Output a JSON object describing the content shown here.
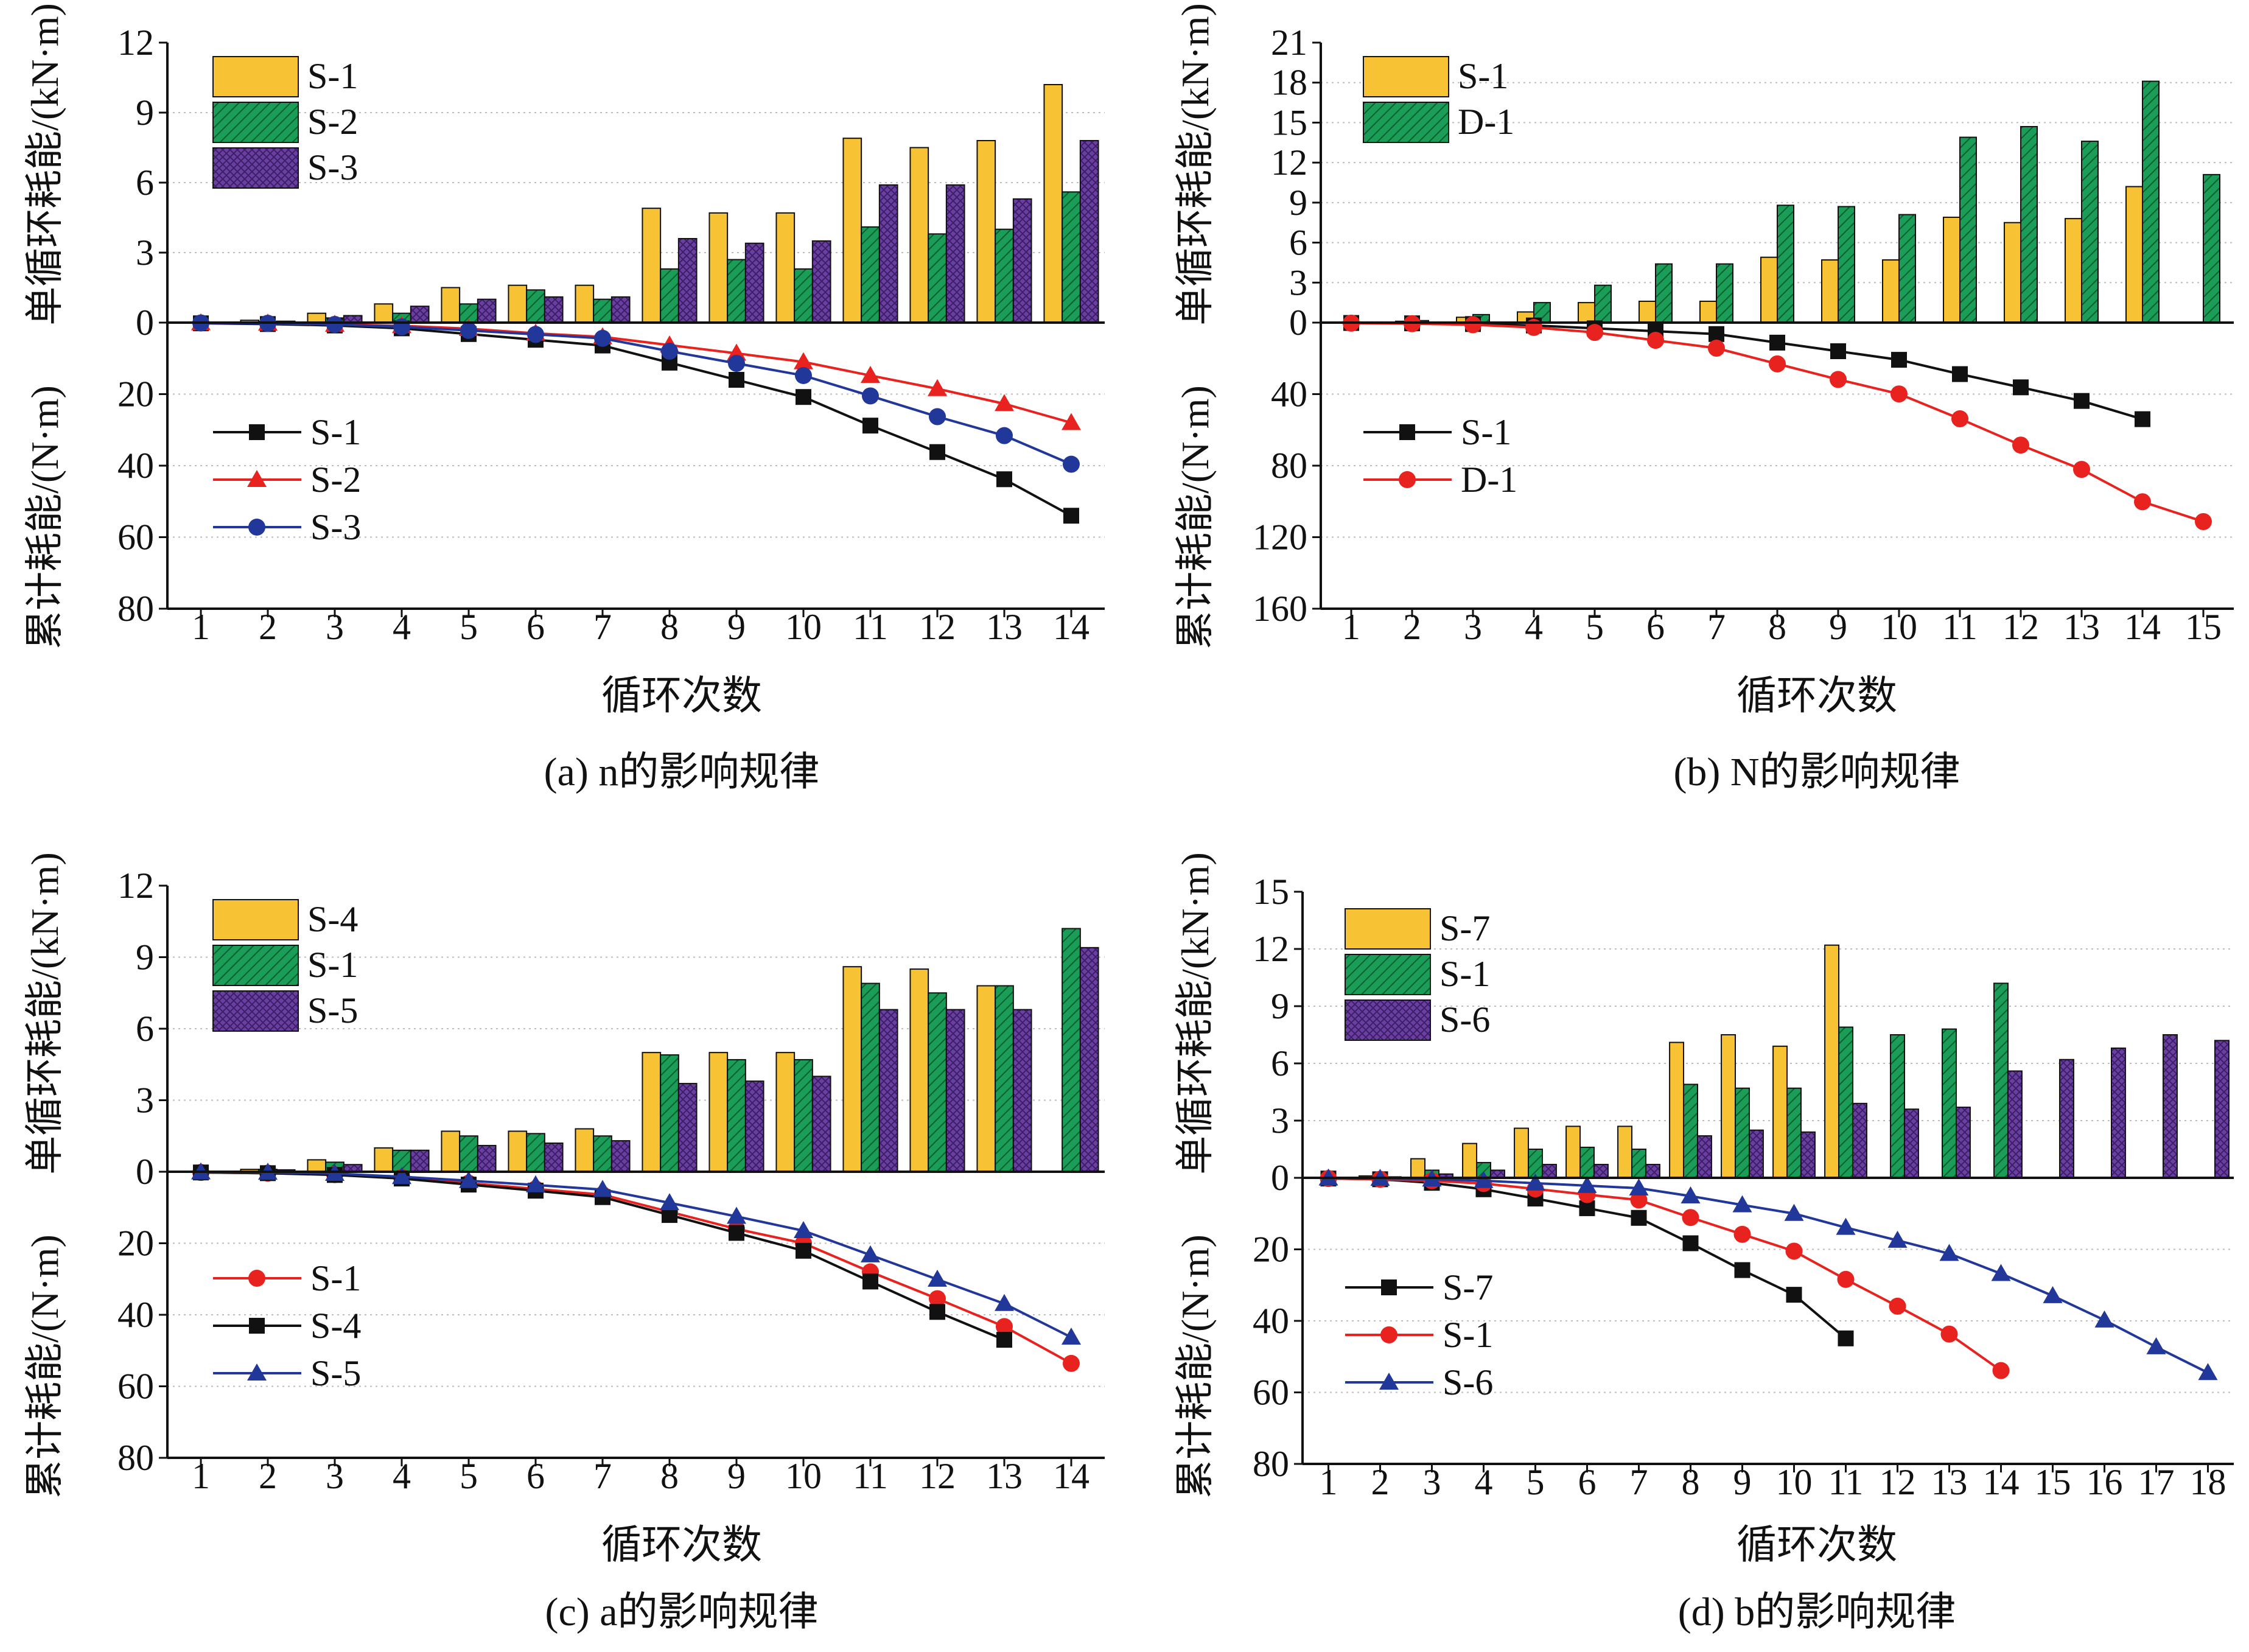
{
  "colors": {
    "yellow": "#f7c233",
    "green": "#1a9d57",
    "purple": "#6a3fa1",
    "black": "#111111",
    "red": "#e8231f",
    "blue": "#22379a",
    "grid": "#bdbdbd"
  },
  "chart_data": [
    {
      "type": "bar+line",
      "caption": "(a) n的影响规律",
      "xlabel": "循环次数",
      "ylabel_top": "单循环耗能/(kN·m)",
      "ylabel_bottom": "累计耗能/(N·m)",
      "categories": [
        "1",
        "2",
        "3",
        "4",
        "5",
        "6",
        "7",
        "8",
        "9",
        "10",
        "11",
        "12",
        "13",
        "14"
      ],
      "top_ylim": [
        0,
        12
      ],
      "top_ticks": [
        "0",
        "3",
        "6",
        "9",
        "12"
      ],
      "bottom_ylim": [
        0,
        80
      ],
      "bottom_ticks": [
        "0",
        "20",
        "40",
        "60",
        "80"
      ],
      "bar_series": [
        {
          "name": "S-1",
          "color": "yellow",
          "values": [
            0.02,
            0.1,
            0.4,
            0.8,
            1.5,
            1.6,
            1.6,
            4.9,
            4.7,
            4.7,
            7.9,
            7.5,
            7.8,
            10.2
          ]
        },
        {
          "name": "S-2",
          "color": "green",
          "values": [
            0.01,
            0.05,
            0.2,
            0.4,
            0.8,
            1.4,
            1.0,
            2.3,
            2.7,
            2.3,
            4.1,
            3.8,
            4.0,
            5.6
          ]
        },
        {
          "name": "S-3",
          "color": "purple",
          "values": [
            0.01,
            0.06,
            0.3,
            0.7,
            1.0,
            1.1,
            1.1,
            3.6,
            3.4,
            3.5,
            5.9,
            5.9,
            5.3,
            7.8
          ]
        }
      ],
      "line_series": [
        {
          "name": "S-1",
          "color": "black",
          "marker": "square",
          "values": [
            0.2,
            0.4,
            0.8,
            1.6,
            3.2,
            4.8,
            6.4,
            11.2,
            16.0,
            20.8,
            28.8,
            36.2,
            43.8,
            54.0
          ]
        },
        {
          "name": "S-2",
          "color": "red",
          "marker": "triangle",
          "values": [
            0.1,
            0.2,
            0.5,
            0.9,
            1.7,
            3.0,
            4.0,
            6.3,
            8.6,
            11.0,
            14.8,
            18.5,
            22.7,
            28.0
          ]
        },
        {
          "name": "S-3",
          "color": "blue",
          "marker": "circle",
          "values": [
            0.1,
            0.2,
            0.5,
            1.2,
            2.2,
            3.3,
            4.4,
            8.0,
            11.4,
            14.8,
            20.5,
            26.3,
            31.6,
            39.6
          ]
        }
      ]
    },
    {
      "type": "bar+line",
      "caption": "(b) N的影响规律",
      "xlabel": "循环次数",
      "ylabel_top": "单循环耗能/(kN·m)",
      "ylabel_bottom": "累计耗能/(N·m)",
      "categories": [
        "1",
        "2",
        "3",
        "4",
        "5",
        "6",
        "7",
        "8",
        "9",
        "10",
        "11",
        "12",
        "13",
        "14",
        "15"
      ],
      "top_ylim": [
        0,
        21
      ],
      "top_ticks": [
        "0",
        "3",
        "6",
        "9",
        "12",
        "15",
        "18",
        "21"
      ],
      "bottom_ylim": [
        0,
        160
      ],
      "bottom_ticks": [
        "0",
        "40",
        "80",
        "120",
        "160"
      ],
      "bar_series": [
        {
          "name": "S-1",
          "color": "yellow",
          "values": [
            0.02,
            0.1,
            0.4,
            0.8,
            1.5,
            1.6,
            1.6,
            4.9,
            4.7,
            4.7,
            7.9,
            7.5,
            7.8,
            10.2,
            null
          ]
        },
        {
          "name": "D-1",
          "color": "green",
          "values": [
            0.03,
            0.15,
            0.6,
            1.5,
            2.8,
            4.4,
            4.4,
            8.8,
            8.7,
            8.1,
            13.9,
            14.7,
            13.6,
            18.1,
            11.1
          ]
        }
      ],
      "line_series": [
        {
          "name": "S-1",
          "color": "black",
          "marker": "square",
          "values": [
            0.2,
            0.4,
            0.8,
            1.6,
            3.2,
            4.8,
            6.4,
            11.2,
            16.0,
            20.8,
            28.8,
            36.2,
            43.8,
            54.0,
            null
          ]
        },
        {
          "name": "D-1",
          "color": "red",
          "marker": "circle",
          "values": [
            0.3,
            0.6,
            1.2,
            2.7,
            5.5,
            9.9,
            14.3,
            23.1,
            31.8,
            39.9,
            53.8,
            68.5,
            82.1,
            100.2,
            111.3
          ]
        }
      ]
    },
    {
      "type": "bar+line",
      "caption": "(c) a的影响规律",
      "xlabel": "循环次数",
      "ylabel_top": "单循环耗能/(kN·m)",
      "ylabel_bottom": "累计耗能/(N·m)",
      "categories": [
        "1",
        "2",
        "3",
        "4",
        "5",
        "6",
        "7",
        "8",
        "9",
        "10",
        "11",
        "12",
        "13",
        "14"
      ],
      "top_ylim": [
        0,
        12
      ],
      "top_ticks": [
        "0",
        "3",
        "6",
        "9",
        "12"
      ],
      "bottom_ylim": [
        0,
        80
      ],
      "bottom_ticks": [
        "0",
        "20",
        "40",
        "60",
        "80"
      ],
      "bar_series": [
        {
          "name": "S-4",
          "color": "yellow",
          "values": [
            0.02,
            0.1,
            0.5,
            1.0,
            1.7,
            1.7,
            1.8,
            5.0,
            5.0,
            5.0,
            8.6,
            8.5,
            7.8,
            null
          ]
        },
        {
          "name": "S-1",
          "color": "green",
          "values": [
            0.02,
            0.1,
            0.4,
            0.9,
            1.5,
            1.6,
            1.5,
            4.9,
            4.7,
            4.7,
            7.9,
            7.5,
            7.8,
            10.2
          ]
        },
        {
          "name": "S-5",
          "color": "purple",
          "values": [
            0.01,
            0.08,
            0.3,
            0.9,
            1.1,
            1.2,
            1.3,
            3.7,
            3.8,
            4.0,
            6.8,
            6.8,
            6.8,
            9.4
          ]
        }
      ],
      "line_series": [
        {
          "name": "S-1",
          "color": "red",
          "marker": "circle",
          "values": [
            0.2,
            0.4,
            0.8,
            1.6,
            3.2,
            4.8,
            6.4,
            11.2,
            16.0,
            20.0,
            28.0,
            35.5,
            43.3,
            53.6
          ]
        },
        {
          "name": "S-4",
          "color": "black",
          "marker": "square",
          "values": [
            0.2,
            0.4,
            0.9,
            1.9,
            3.6,
            5.3,
            7.1,
            12.1,
            17.1,
            22.1,
            30.7,
            39.2,
            47.0,
            null
          ]
        },
        {
          "name": "S-5",
          "color": "blue",
          "marker": "triangle",
          "values": [
            0.1,
            0.2,
            0.5,
            1.4,
            2.5,
            3.7,
            5.0,
            8.7,
            12.5,
            16.5,
            23.3,
            30.1,
            36.9,
            46.3
          ]
        }
      ]
    },
    {
      "type": "bar+line",
      "caption": "(d) b的影响规律",
      "xlabel": "循环次数",
      "ylabel_top": "单循环耗能/(kN·m)",
      "ylabel_bottom": "累计耗能/(N·m)",
      "categories": [
        "1",
        "2",
        "3",
        "4",
        "5",
        "6",
        "7",
        "8",
        "9",
        "10",
        "11",
        "12",
        "13",
        "14",
        "15",
        "16",
        "17",
        "18"
      ],
      "top_ylim": [
        0,
        15
      ],
      "top_ticks": [
        "0",
        "3",
        "6",
        "9",
        "12",
        "15"
      ],
      "bottom_ylim": [
        0,
        80
      ],
      "bottom_ticks": [
        "0",
        "20",
        "40",
        "60",
        "80"
      ],
      "bar_series": [
        {
          "name": "S-7",
          "color": "yellow",
          "values": [
            0.02,
            0.1,
            1.0,
            1.8,
            2.6,
            2.7,
            2.7,
            7.1,
            7.5,
            6.9,
            12.2,
            null,
            null,
            null,
            null,
            null,
            null,
            null
          ]
        },
        {
          "name": "S-1",
          "color": "green",
          "values": [
            0.02,
            0.1,
            0.4,
            0.8,
            1.5,
            1.6,
            1.5,
            4.9,
            4.7,
            4.7,
            7.9,
            7.5,
            7.8,
            10.2,
            null,
            null,
            null,
            null
          ]
        },
        {
          "name": "S-6",
          "color": "purple",
          "values": [
            0.01,
            0.05,
            0.2,
            0.4,
            0.7,
            0.7,
            0.7,
            2.2,
            2.5,
            2.4,
            3.9,
            3.6,
            3.7,
            5.6,
            6.2,
            6.8,
            7.5,
            7.2
          ]
        }
      ],
      "line_series": [
        {
          "name": "S-7",
          "color": "black",
          "marker": "square",
          "values": [
            0.2,
            0.4,
            1.4,
            3.2,
            5.8,
            8.5,
            11.2,
            18.3,
            25.8,
            32.7,
            44.9,
            null,
            null,
            null,
            null,
            null,
            null,
            null
          ]
        },
        {
          "name": "S-1",
          "color": "red",
          "marker": "circle",
          "values": [
            0.2,
            0.4,
            0.8,
            1.6,
            3.1,
            4.7,
            6.2,
            11.1,
            15.8,
            20.5,
            28.4,
            35.9,
            43.7,
            53.9,
            null,
            null,
            null,
            null
          ]
        },
        {
          "name": "S-6",
          "color": "blue",
          "marker": "triangle",
          "values": [
            0.1,
            0.2,
            0.4,
            0.8,
            1.5,
            2.2,
            2.9,
            5.1,
            7.6,
            10.0,
            13.9,
            17.5,
            21.2,
            26.8,
            33.0,
            39.8,
            47.3,
            54.5
          ]
        }
      ]
    }
  ]
}
